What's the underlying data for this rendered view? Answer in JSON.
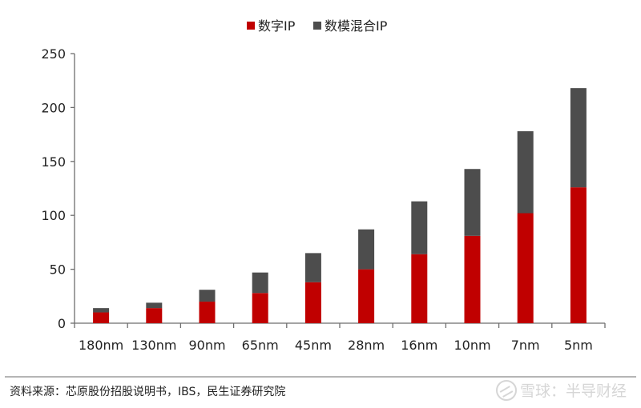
{
  "chart_data": {
    "type": "bar",
    "stacked": true,
    "categories": [
      "180nm",
      "130nm",
      "90nm",
      "65nm",
      "45nm",
      "28nm",
      "16nm",
      "10nm",
      "7nm",
      "5nm"
    ],
    "series": [
      {
        "name": "数字IP",
        "color": "#c00000",
        "values": [
          10,
          14,
          20,
          28,
          38,
          50,
          64,
          81,
          102,
          126
        ]
      },
      {
        "name": "数模混合IP",
        "color": "#4d4d4d",
        "values": [
          4,
          5,
          11,
          19,
          27,
          37,
          49,
          62,
          76,
          92
        ]
      }
    ],
    "ylim": [
      0,
      250
    ],
    "yticks": [
      0,
      50,
      100,
      150,
      200,
      250
    ],
    "legend": "top-center",
    "grid": false
  },
  "footer": {
    "source": "资料来源：芯原股份招股说明书，IBS，民生证券研究院",
    "watermark": "雪球：半导财经"
  }
}
